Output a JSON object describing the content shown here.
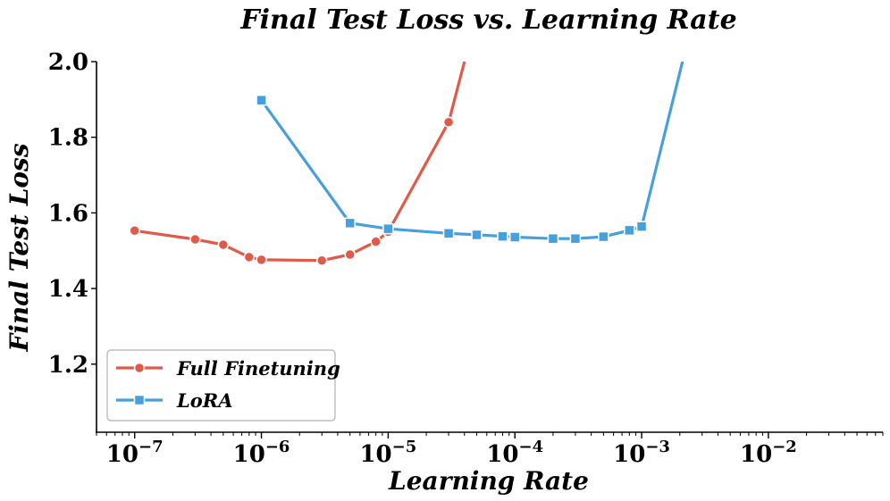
{
  "chart_data": {
    "type": "line",
    "title": "Final Test Loss vs. Learning Rate",
    "xlabel": "Learning Rate",
    "ylabel": "Final Test Loss",
    "xscale": "log",
    "xlim": [
      5e-08,
      0.08
    ],
    "ylim": [
      1.02,
      2.0
    ],
    "yticks": [
      1.2,
      1.4,
      1.6,
      1.8,
      2.0
    ],
    "ytick_labels": [
      "1.2",
      "1.4",
      "1.6",
      "1.8",
      "2.0"
    ],
    "xticks": [
      {
        "value": 1e-07,
        "base": "10",
        "exp": "−7"
      },
      {
        "value": 1e-06,
        "base": "10",
        "exp": "−6"
      },
      {
        "value": 1e-05,
        "base": "10",
        "exp": "−5"
      },
      {
        "value": 0.0001,
        "base": "10",
        "exp": "−4"
      },
      {
        "value": 0.001,
        "base": "10",
        "exp": "−3"
      },
      {
        "value": 0.01,
        "base": "10",
        "exp": "−2"
      }
    ],
    "legend_position": "lower-left",
    "series": [
      {
        "name": "Full Finetuning",
        "color": "#e05a49",
        "marker": "circle",
        "x": [
          1e-07,
          3e-07,
          5e-07,
          8e-07,
          1e-06,
          3e-06,
          5e-06,
          8e-06,
          1e-05,
          3e-05,
          4e-05
        ],
        "y": [
          1.553,
          1.53,
          1.516,
          1.483,
          1.476,
          1.474,
          1.49,
          1.524,
          1.55,
          1.84,
          2.0
        ],
        "markers": [
          true,
          true,
          true,
          true,
          true,
          true,
          true,
          true,
          true,
          true,
          false
        ]
      },
      {
        "name": "LoRA",
        "color": "#479fdc",
        "marker": "square",
        "x": [
          1e-06,
          5e-06,
          1e-05,
          3e-05,
          5e-05,
          8e-05,
          0.0001,
          0.0002,
          0.0003,
          0.0005,
          0.0008,
          0.001,
          0.0021
        ],
        "y": [
          1.898,
          1.573,
          1.558,
          1.546,
          1.542,
          1.538,
          1.536,
          1.532,
          1.532,
          1.537,
          1.554,
          1.564,
          2.0
        ],
        "markers": [
          true,
          true,
          true,
          true,
          true,
          true,
          true,
          true,
          true,
          true,
          true,
          true,
          false
        ]
      }
    ]
  }
}
